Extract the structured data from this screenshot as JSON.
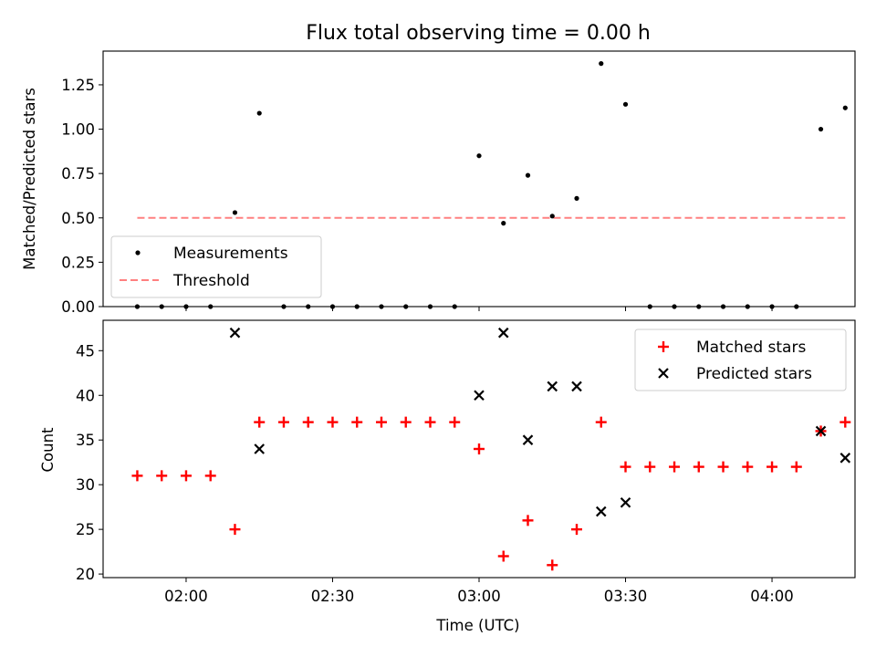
{
  "chart_data": [
    {
      "type": "scatter",
      "title": "Flux total observing time = 0.00 h",
      "ylabel": "Matched/Predicted stars",
      "xlabel": "",
      "ylim": [
        0,
        1.44
      ],
      "yticks": [
        "0.00",
        "0.25",
        "0.50",
        "0.75",
        "1.00",
        "1.25"
      ],
      "series": [
        {
          "name": "Measurements",
          "style": "dot",
          "color": "#000000",
          "x": [
            -10,
            -5,
            0,
            5,
            10,
            15,
            20,
            25,
            30,
            35,
            40,
            45,
            50,
            55,
            60,
            65,
            70,
            75,
            80,
            85,
            90,
            95,
            100,
            105,
            110,
            115,
            120,
            125,
            130,
            135
          ],
          "y": [
            0,
            0,
            0,
            0,
            0.53,
            1.09,
            0,
            0,
            0,
            0,
            0,
            0,
            0,
            0,
            0.85,
            0.47,
            0.74,
            0.51,
            0.61,
            1.37,
            1.14,
            0,
            0,
            0,
            0,
            0,
            0,
            0,
            1.0,
            1.12
          ]
        },
        {
          "name": "Threshold",
          "style": "dashed-line",
          "color": "#ff8080",
          "x": [
            -10,
            135
          ],
          "y": [
            0.5,
            0.5
          ]
        }
      ],
      "legend": "lower-left"
    },
    {
      "type": "scatter",
      "title": "",
      "ylabel": "Count",
      "xlabel": "Time (UTC)",
      "ylim": [
        19.6,
        48.4
      ],
      "yticks": [
        "20",
        "25",
        "30",
        "35",
        "40",
        "45"
      ],
      "xticks": [
        {
          "minutes": 0,
          "label": "02:00"
        },
        {
          "minutes": 30,
          "label": "02:30"
        },
        {
          "minutes": 60,
          "label": "03:00"
        },
        {
          "minutes": 90,
          "label": "03:30"
        },
        {
          "minutes": 120,
          "label": "04:00"
        }
      ],
      "xlim_minutes": [
        -17,
        137
      ],
      "x_unit": "minutes after 02:00 UTC",
      "series": [
        {
          "name": "Matched stars",
          "marker": "plus",
          "color": "#ff0000",
          "x": [
            -10,
            -5,
            0,
            5,
            10,
            15,
            20,
            25,
            30,
            35,
            40,
            45,
            50,
            55,
            60,
            65,
            70,
            75,
            80,
            85,
            90,
            95,
            100,
            105,
            110,
            115,
            120,
            125,
            130,
            135
          ],
          "y": [
            31,
            31,
            31,
            31,
            25,
            37,
            37,
            37,
            37,
            37,
            37,
            37,
            37,
            37,
            34,
            22,
            26,
            21,
            25,
            37,
            32,
            32,
            32,
            32,
            32,
            32,
            32,
            32,
            36,
            37
          ]
        },
        {
          "name": "Predicted stars",
          "marker": "x",
          "color": "#000000",
          "x": [
            10,
            15,
            60,
            65,
            70,
            75,
            80,
            85,
            90,
            130,
            135
          ],
          "y": [
            47,
            34,
            40,
            47,
            35,
            41,
            41,
            27,
            28,
            36,
            33
          ]
        }
      ],
      "legend": "upper-right"
    }
  ]
}
